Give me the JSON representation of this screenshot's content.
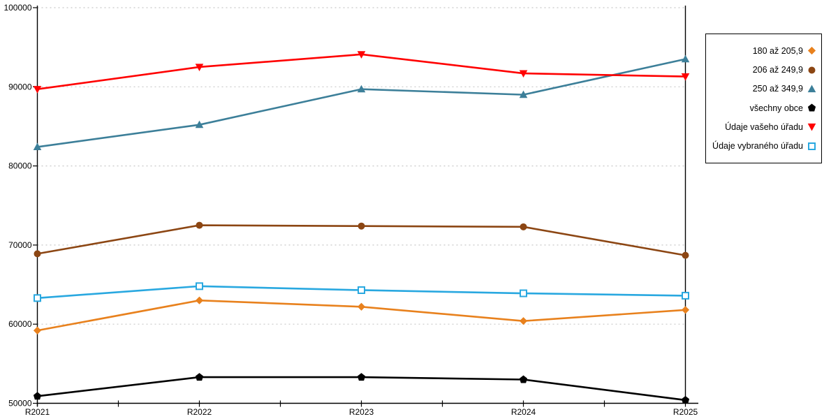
{
  "chart_data": {
    "type": "line",
    "x": [
      "R2021",
      "R2022",
      "R2023",
      "R2024",
      "R2025"
    ],
    "ylim": [
      50000,
      100000
    ],
    "y_ticks": [
      "50000",
      "60000",
      "70000",
      "80000",
      "90000",
      "100000"
    ],
    "grid": "horizontal-dotted",
    "legend_position": "right",
    "colors": {
      "grid": "#C8C8C8",
      "axis": "#000000"
    },
    "series": [
      {
        "name": "180 až 205,9",
        "marker": "diamond",
        "color": "#E8811D",
        "values": [
          59200,
          63000,
          62200,
          60400,
          61800
        ]
      },
      {
        "name": "206 až 249,9",
        "marker": "circle",
        "color": "#8C4613",
        "values": [
          68900,
          72500,
          72400,
          72300,
          68700
        ]
      },
      {
        "name": "250 až 349,9",
        "marker": "triangle-up",
        "color": "#3C7F99",
        "values": [
          82400,
          85200,
          89700,
          89000,
          93500
        ]
      },
      {
        "name": "všechny obce",
        "marker": "pentagon",
        "color": "#000000",
        "values": [
          50900,
          53300,
          53300,
          53000,
          50400
        ]
      },
      {
        "name": "Údaje vašeho úřadu",
        "marker": "triangle-down",
        "color": "#FF0000",
        "values": [
          89700,
          92500,
          94100,
          91700,
          91300
        ]
      },
      {
        "name": "Údaje vybraného úřadu",
        "marker": "square-open",
        "color": "#29A8E0",
        "values": [
          63300,
          64800,
          64300,
          63900,
          63600
        ]
      }
    ]
  }
}
